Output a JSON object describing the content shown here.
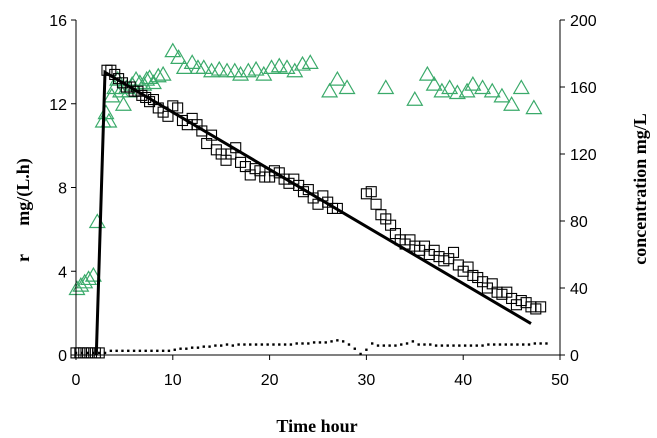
{
  "chart_data": {
    "type": "scatter",
    "xlabel": "Time hour",
    "ylabel_left_r": "r",
    "ylabel_left_unit": "mg/(L.h)",
    "ylabel_right": "concentration   mg/L",
    "xlim": [
      0,
      50
    ],
    "ylim_left": [
      0,
      16
    ],
    "ylim_right": [
      0,
      200
    ],
    "xticks": [
      "0",
      "10",
      "20",
      "30",
      "40",
      "50"
    ],
    "yticks_left": [
      "0",
      "4",
      "8",
      "12",
      "16"
    ],
    "yticks_right": [
      "0",
      "40",
      "80",
      "120",
      "160",
      "200"
    ],
    "grid": false,
    "legend": "none",
    "colors": {
      "triangles": "#3aaa6a",
      "squares": "#000000",
      "line": "#000000",
      "dots": "#000000"
    },
    "series": [
      {
        "marker": "triangle-open",
        "axis": "right",
        "x": [
          0.1,
          0.5,
          0.9,
          1.3,
          1.8,
          2.2,
          2.8,
          3.1,
          3.4,
          3.7,
          4.0,
          4.3,
          4.6,
          4.9,
          5.2,
          5.5,
          5.8,
          6.2,
          6.6,
          7.0,
          7.3,
          7.6,
          8.0,
          8.5,
          9.0,
          10.0,
          10.6,
          11.2,
          12.0,
          12.6,
          13.2,
          14.0,
          14.8,
          15.6,
          16.4,
          17.0,
          17.8,
          18.6,
          19.4,
          20.2,
          21.0,
          21.8,
          22.6,
          23.4,
          24.2,
          26.2,
          27.0,
          28.0,
          32.0,
          35.0,
          36.3,
          37.0,
          37.8,
          38.6,
          39.4,
          40.4,
          41.0,
          42.0,
          43.0,
          44.0,
          45.0,
          46.0,
          47.3
        ],
        "y": [
          40,
          42,
          44,
          46,
          48,
          80,
          140,
          145,
          140,
          155,
          160,
          165,
          158,
          150,
          160,
          158,
          162,
          165,
          163,
          162,
          165,
          166,
          163,
          167,
          168,
          182,
          178,
          172,
          175,
          172,
          172,
          170,
          171,
          170,
          170,
          168,
          170,
          171,
          168,
          172,
          173,
          172,
          170,
          174,
          175,
          158,
          165,
          160,
          160,
          153,
          168,
          162,
          158,
          160,
          157,
          158,
          162,
          160,
          158,
          155,
          150,
          160,
          148
        ]
      },
      {
        "marker": "square-open",
        "axis": "left",
        "x": [
          0.0,
          0.4,
          0.8,
          1.2,
          1.6,
          2.0,
          2.4,
          3.2,
          3.6,
          4.0,
          4.4,
          4.8,
          5.2,
          5.6,
          6.0,
          6.4,
          6.8,
          7.2,
          7.6,
          8.0,
          8.5,
          9.0,
          9.5,
          10.0,
          10.5,
          11.0,
          11.5,
          12.0,
          12.5,
          13.0,
          13.5,
          14.0,
          14.5,
          15.0,
          15.5,
          16.0,
          16.5,
          17.0,
          17.5,
          18.0,
          18.5,
          19.0,
          19.5,
          20.0,
          20.5,
          21.0,
          21.5,
          22.0,
          22.5,
          23.0,
          23.5,
          24.0,
          24.5,
          25.0,
          25.5,
          26.0,
          26.5,
          27.0,
          30.0,
          30.5,
          31.0,
          31.5,
          32.0,
          32.5,
          33.0,
          33.5,
          34.0,
          34.5,
          35.0,
          35.5,
          36.0,
          36.5,
          37.0,
          37.5,
          38.0,
          38.5,
          39.0,
          39.5,
          40.0,
          40.5,
          41.0,
          41.5,
          42.0,
          42.5,
          43.0,
          43.5,
          44.0,
          44.5,
          45.0,
          45.5,
          46.0,
          46.5,
          47.0,
          47.5,
          48.0
        ],
        "y": [
          0.1,
          0.1,
          0.1,
          0.1,
          0.1,
          0.1,
          0.1,
          13.6,
          13.6,
          13.4,
          13.2,
          13.0,
          12.8,
          12.8,
          12.6,
          12.6,
          12.4,
          12.3,
          12.1,
          12.2,
          11.8,
          11.6,
          11.4,
          11.9,
          11.8,
          11.2,
          11.0,
          11.3,
          11.0,
          10.7,
          10.1,
          10.5,
          9.8,
          9.6,
          9.3,
          9.6,
          9.9,
          9.2,
          9.0,
          8.6,
          8.9,
          8.8,
          8.5,
          8.5,
          8.8,
          8.7,
          8.4,
          8.2,
          8.4,
          8.1,
          7.8,
          7.9,
          7.5,
          7.2,
          7.6,
          7.3,
          7.0,
          7.0,
          7.7,
          7.8,
          7.2,
          6.7,
          6.5,
          6.2,
          5.8,
          5.5,
          5.3,
          5.5,
          5.2,
          5.0,
          5.2,
          4.8,
          5.0,
          4.7,
          4.5,
          4.6,
          4.9,
          4.3,
          4.0,
          4.2,
          3.8,
          3.7,
          3.5,
          3.2,
          3.4,
          3.0,
          2.9,
          3.0,
          2.7,
          2.4,
          2.6,
          2.5,
          2.3,
          2.2,
          2.3
        ]
      },
      {
        "marker": "line",
        "axis": "left",
        "x": [
          2.1,
          3.0,
          47.0
        ],
        "y": [
          0.0,
          13.5,
          1.5
        ]
      },
      {
        "marker": "dot-small",
        "axis": "left",
        "x": [
          0,
          0.6,
          1.2,
          1.8,
          2.4,
          3.0,
          3.6,
          4.2,
          4.8,
          5.4,
          6.0,
          6.6,
          7.2,
          7.8,
          8.4,
          9.0,
          9.6,
          10.2,
          10.8,
          11.4,
          12.0,
          12.6,
          13.2,
          13.8,
          14.4,
          15.0,
          15.6,
          16.2,
          16.8,
          17.4,
          18.0,
          18.6,
          19.2,
          19.8,
          20.4,
          21.0,
          21.6,
          22.2,
          22.8,
          23.4,
          24.0,
          24.6,
          25.2,
          25.8,
          26.4,
          27.0,
          27.6,
          28.2,
          28.8,
          29.4,
          30.0,
          30.6,
          31.2,
          31.8,
          32.4,
          33.0,
          33.6,
          34.2,
          34.8,
          35.4,
          36.0,
          36.6,
          37.2,
          37.8,
          38.4,
          39.0,
          39.6,
          40.2,
          40.8,
          41.4,
          42.0,
          42.6,
          43.2,
          43.8,
          44.4,
          45.0,
          45.6,
          46.2,
          46.8,
          47.4,
          48.0,
          48.6
        ],
        "y": [
          0.1,
          0.1,
          0.1,
          0.1,
          0.1,
          0.1,
          0.2,
          0.2,
          0.2,
          0.2,
          0.2,
          0.2,
          0.2,
          0.2,
          0.2,
          0.2,
          0.2,
          0.25,
          0.3,
          0.3,
          0.35,
          0.35,
          0.4,
          0.4,
          0.45,
          0.45,
          0.5,
          0.45,
          0.5,
          0.5,
          0.5,
          0.5,
          0.5,
          0.5,
          0.5,
          0.5,
          0.5,
          0.5,
          0.55,
          0.55,
          0.55,
          0.6,
          0.6,
          0.6,
          0.65,
          0.7,
          0.65,
          0.5,
          0.3,
          0.05,
          0.25,
          0.55,
          0.45,
          0.45,
          0.45,
          0.45,
          0.5,
          0.55,
          0.65,
          0.5,
          0.5,
          0.5,
          0.45,
          0.45,
          0.45,
          0.45,
          0.45,
          0.45,
          0.45,
          0.45,
          0.45,
          0.5,
          0.5,
          0.5,
          0.5,
          0.5,
          0.5,
          0.5,
          0.5,
          0.55,
          0.55,
          0.55
        ]
      }
    ]
  }
}
